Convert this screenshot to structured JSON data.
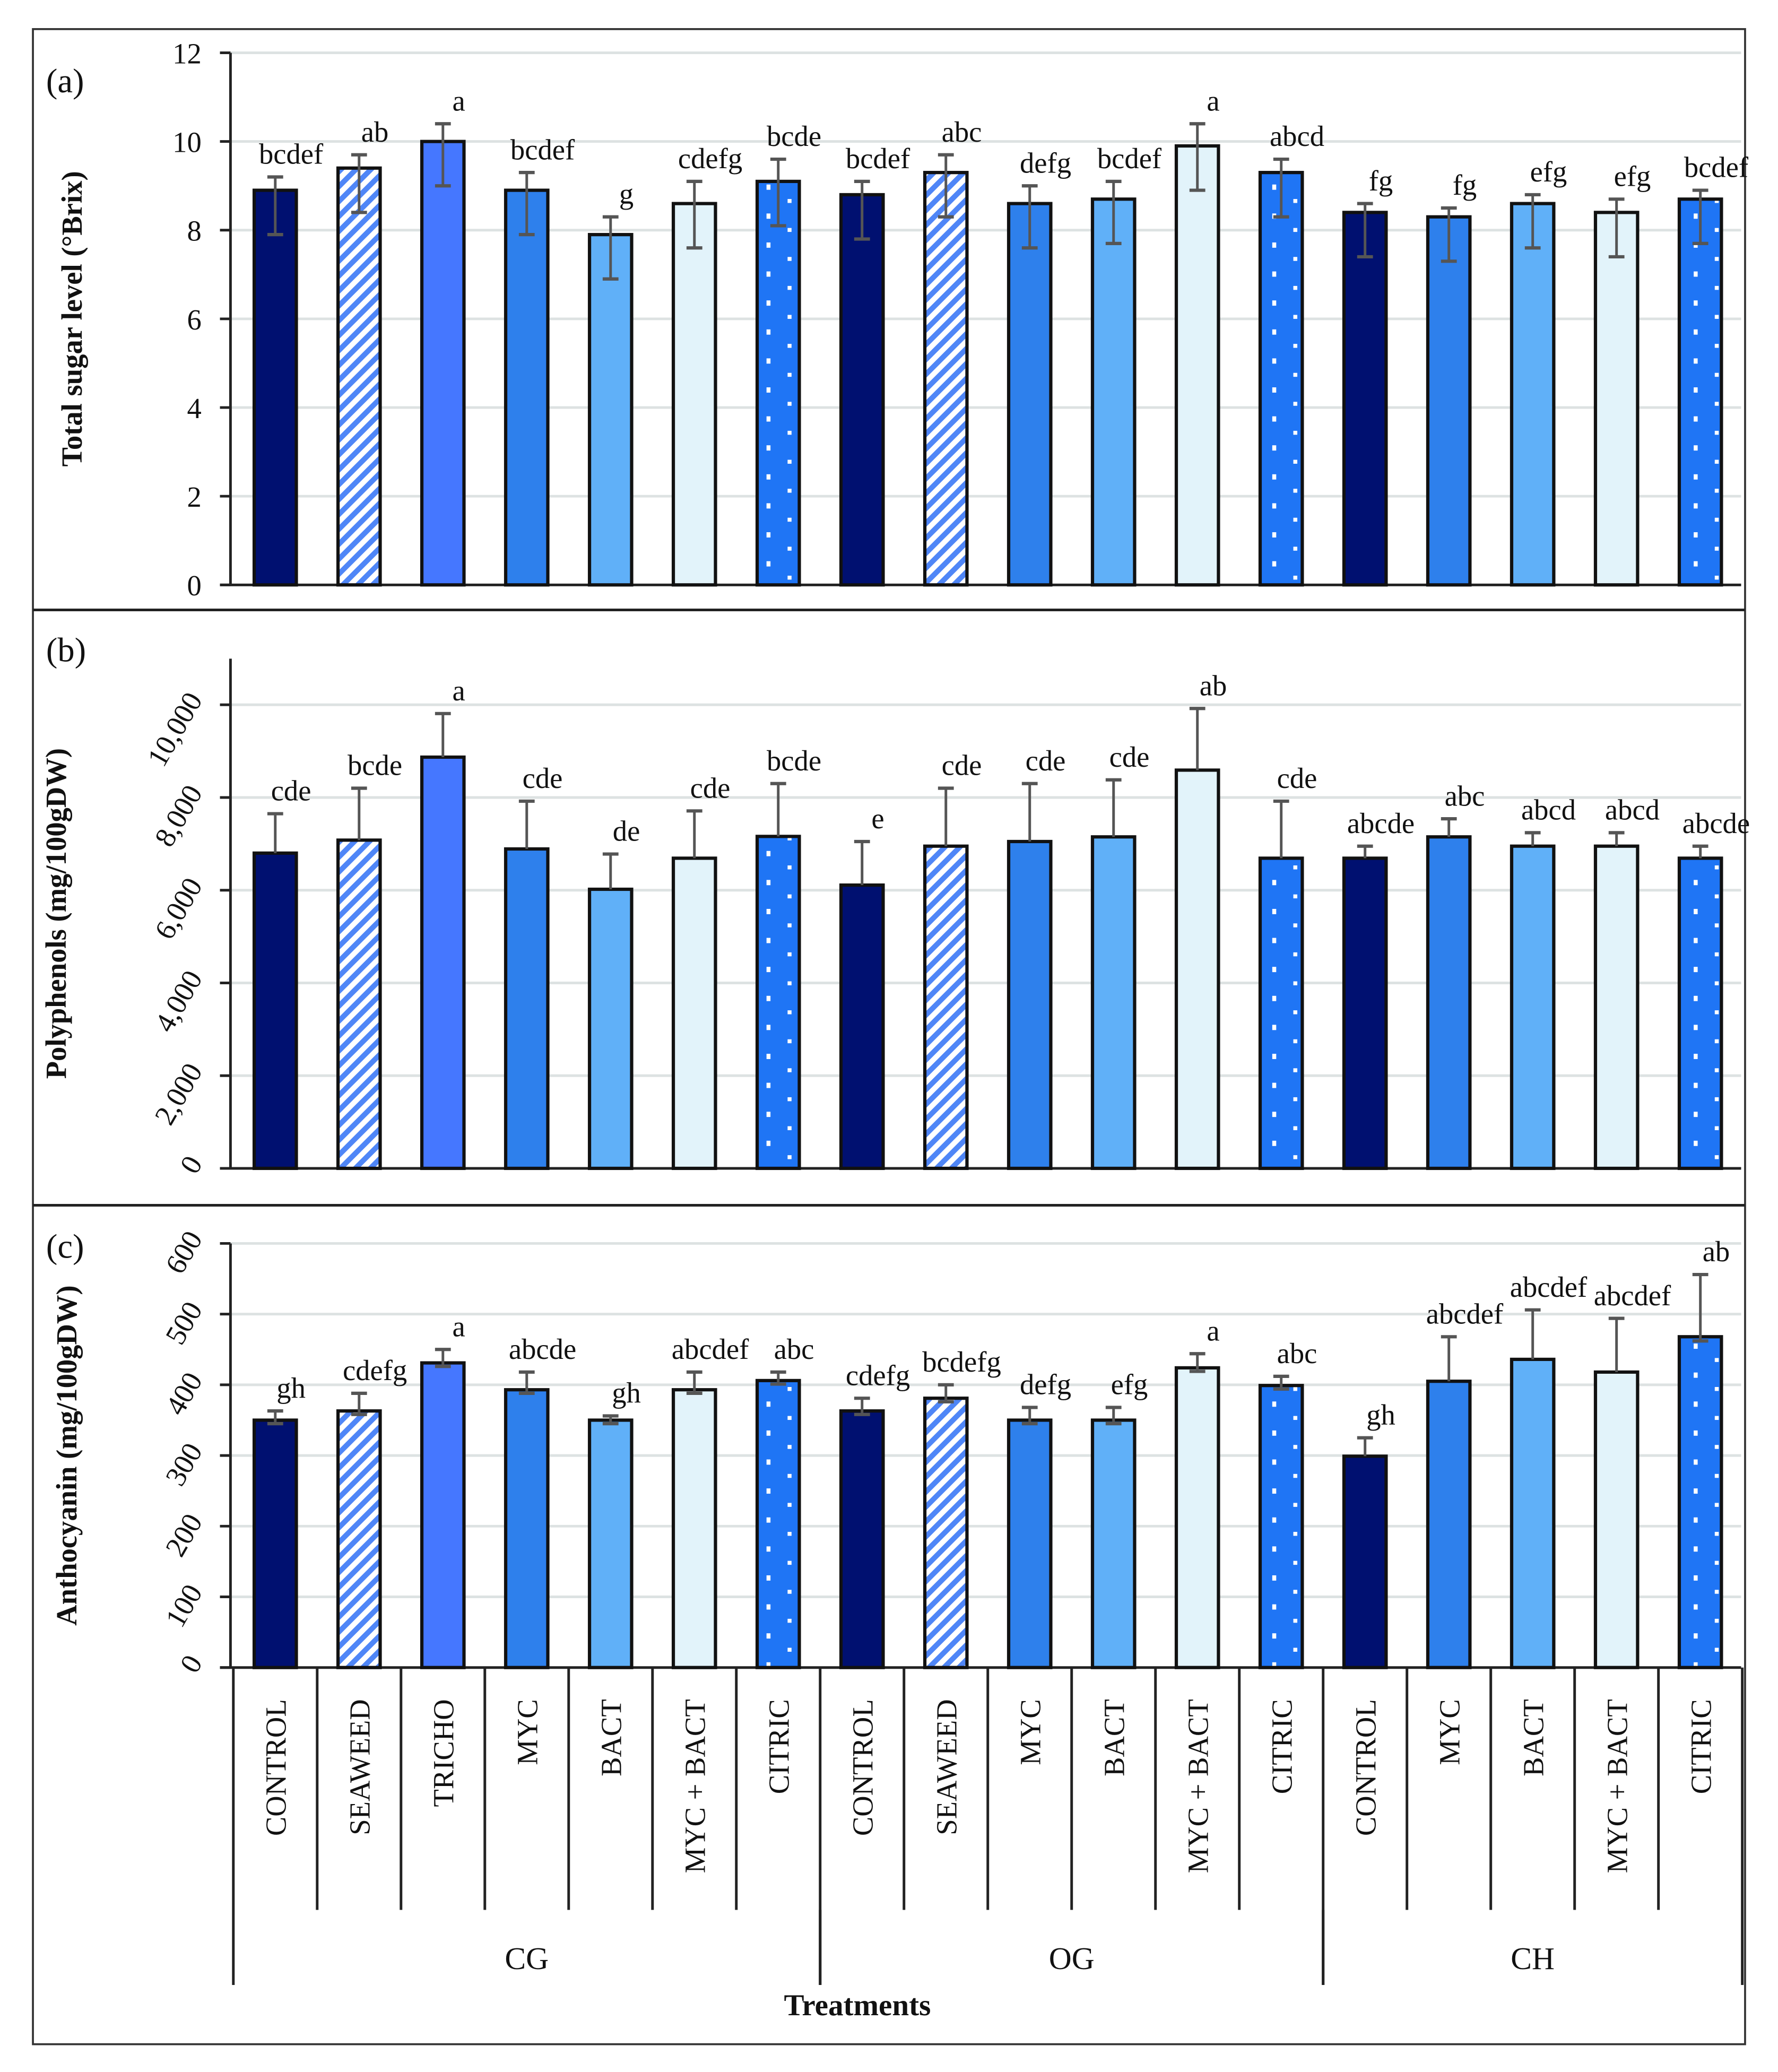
{
  "chart_data": {
    "type": "bar",
    "categories": [
      "CONTROL",
      "SEAWEED",
      "TRICHO",
      "MYC",
      "BACT",
      "MYC + BACT",
      "CITRIC",
      "CONTROL",
      "SEAWEED",
      "MYC",
      "BACT",
      "MYC + BACT",
      "CITRIC",
      "CONTROL",
      "MYC",
      "BACT",
      "MYC + BACT",
      "CITRIC"
    ],
    "category_treatment": [
      "CONTROL",
      "SEAWEED",
      "TRICHO",
      "MYC",
      "BACT",
      "MYC + BACT",
      "CITRIC",
      "CONTROL",
      "SEAWEED",
      "MYC",
      "BACT",
      "MYC + BACT",
      "CITRIC",
      "CONTROL",
      "MYC",
      "BACT",
      "MYC + BACT",
      "CITRIC"
    ],
    "groups": [
      {
        "label": "CG",
        "count": 7
      },
      {
        "label": "OG",
        "count": 6
      },
      {
        "label": "CH",
        "count": 5
      }
    ],
    "xlabel": "Treatments",
    "colors": {
      "CONTROL": "#001070",
      "SEAWEED": "#4f86f7",
      "TRICHO": "#4577ff",
      "MYC": "#2e80ec",
      "BACT": "#60b0f8",
      "MYC + BACT": "#e2f3fa",
      "CITRIC": "#1f75f5"
    },
    "panels": [
      {
        "label": "(a)",
        "ylabel": "Total sugar level (°Brix)",
        "ylim": [
          0,
          12
        ],
        "yticks": [
          0,
          2,
          4,
          6,
          8,
          10,
          12
        ],
        "ytick_labels": [
          "0",
          "2",
          "4",
          "6",
          "8",
          "10",
          "12"
        ],
        "rotated_ticks": false,
        "grid": true,
        "values": [
          8.9,
          9.4,
          10.0,
          8.9,
          7.9,
          8.6,
          9.1,
          8.8,
          9.3,
          8.6,
          8.7,
          9.9,
          9.3,
          8.4,
          8.3,
          8.6,
          8.4,
          8.7
        ],
        "err_low": [
          7.9,
          8.4,
          9.0,
          7.9,
          6.9,
          7.6,
          8.1,
          7.8,
          8.3,
          7.6,
          7.7,
          8.9,
          8.3,
          7.4,
          7.3,
          7.6,
          7.4,
          7.7
        ],
        "err_high": [
          9.2,
          9.7,
          10.4,
          9.3,
          8.3,
          9.1,
          9.6,
          9.1,
          9.7,
          9.0,
          9.1,
          10.4,
          9.6,
          8.6,
          8.5,
          8.8,
          8.7,
          8.9
        ],
        "letters": [
          "bcdef",
          "ab",
          "a",
          "bcdef",
          "g",
          "cdefg",
          "bcde",
          "bcdef",
          "abc",
          "defg",
          "bcdef",
          "a",
          "abcd",
          "fg",
          "fg",
          "efg",
          "efg",
          "bcdef"
        ]
      },
      {
        "label": "(b)",
        "ylabel": "Polyphenols (mg/100gDW)",
        "ylim": [
          0,
          11000
        ],
        "yticks": [
          0,
          2000,
          4000,
          6000,
          8000,
          10000
        ],
        "ytick_labels": [
          "0",
          "2,000",
          "4,000",
          "6,000",
          "8,000",
          "10,000"
        ],
        "rotated_ticks": true,
        "grid": true,
        "values": [
          6800,
          7080,
          8870,
          6890,
          6020,
          6690,
          7160,
          6110,
          6950,
          7050,
          7150,
          8590,
          6690,
          6690,
          7150,
          6950,
          6950,
          6690
        ],
        "err_low": [
          6800,
          7080,
          8870,
          6890,
          6020,
          6690,
          7160,
          6110,
          6950,
          7050,
          7150,
          8590,
          6690,
          6690,
          7150,
          6950,
          6950,
          6690
        ],
        "err_high": [
          7650,
          8200,
          9810,
          7920,
          6780,
          7710,
          8300,
          7050,
          8200,
          8300,
          8380,
          9920,
          7920,
          6950,
          7540,
          7240,
          7240,
          6950
        ],
        "letters": [
          "cde",
          "bcde",
          "a",
          "cde",
          "de",
          "cde",
          "bcde",
          "e",
          "cde",
          "cde",
          "cde",
          "ab",
          "cde",
          "abcde",
          "abc",
          "abcd",
          "abcd",
          "abcde"
        ]
      },
      {
        "label": "(c)",
        "ylabel": "Anthocyanin (mg/100gDW)",
        "ylim": [
          0,
          600
        ],
        "yticks": [
          0,
          100,
          200,
          300,
          400,
          500,
          600
        ],
        "ytick_labels": [
          "0",
          "100",
          "200",
          "300",
          "400",
          "500",
          "600"
        ],
        "rotated_ticks": true,
        "grid": true,
        "values": [
          350,
          363,
          431,
          393,
          350,
          393,
          406,
          363,
          381,
          350,
          350,
          424,
          399,
          299,
          405,
          436,
          418,
          468
        ],
        "err_low": [
          345,
          358,
          426,
          388,
          345,
          388,
          401,
          358,
          376,
          345,
          345,
          419,
          394,
          299,
          405,
          436,
          418,
          462
        ],
        "err_high": [
          363,
          388,
          450,
          418,
          356,
          418,
          418,
          381,
          400,
          368,
          368,
          444,
          412,
          325,
          468,
          506,
          494,
          556
        ],
        "letters": [
          "gh",
          "cdefg",
          "a",
          "abcde",
          "gh",
          "abcdef",
          "abc",
          "cdefg",
          "bcdefg",
          "defg",
          "efg",
          "a",
          "abc",
          "gh",
          "abcdef",
          "abcdef",
          "abcdef",
          "ab"
        ]
      }
    ]
  }
}
